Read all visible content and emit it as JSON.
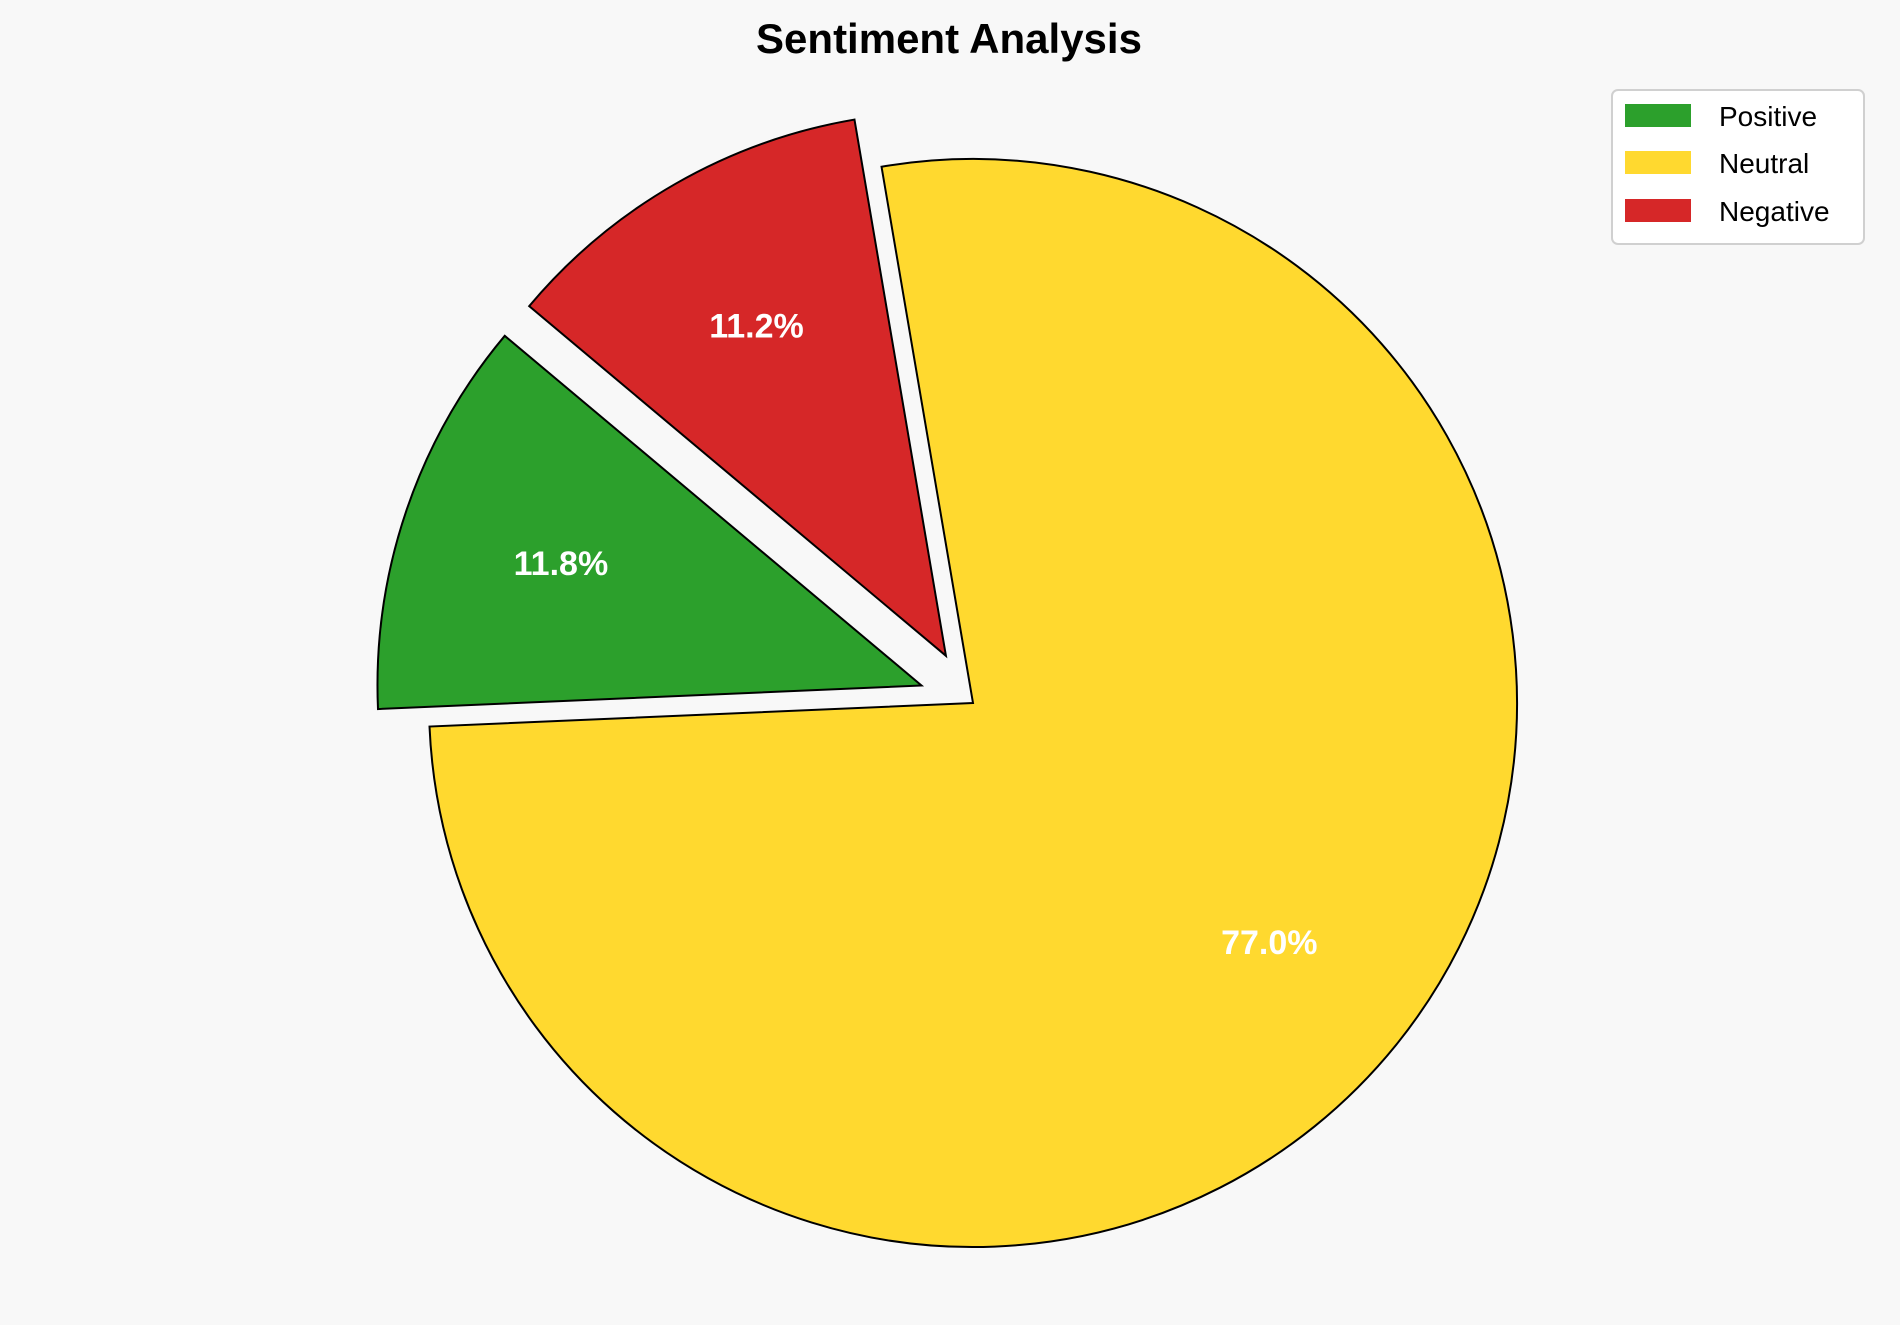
{
  "chart_data": {
    "type": "pie",
    "title": "Sentiment Analysis",
    "categories": [
      "Positive",
      "Neutral",
      "Negative"
    ],
    "values": [
      11.8,
      77.0,
      11.2
    ],
    "labels": [
      "11.8%",
      "77.0%",
      "11.2%"
    ],
    "colors": [
      "#2ca02c",
      "#ffd92f",
      "#d62728"
    ],
    "exploded": [
      true,
      false,
      true
    ],
    "start_angle_deg": 140,
    "direction": "counterclockwise",
    "legend": {
      "placement": "top-right",
      "entries": [
        "Positive",
        "Neutral",
        "Negative"
      ]
    }
  }
}
